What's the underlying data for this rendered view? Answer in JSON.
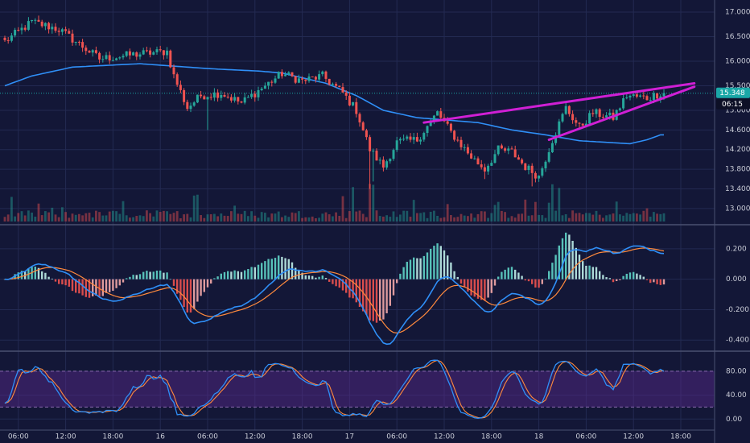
{
  "colors": {
    "background": "#131737",
    "grid": "#232a52",
    "separator": "#4a5070",
    "axis_text": "#c8cbd6",
    "up": "#26a69a",
    "down": "#ef5350",
    "ma_line": "#2f8ff7",
    "trendline": "#d01fd5",
    "price_label": "#1aa7a7",
    "macd_line": "#2f8ff7",
    "signal_line": "#ff8a3d",
    "stoch_k": "#2f8ff7",
    "stoch_d": "#ff8a3d",
    "stoch_band": "#5b2a8e"
  },
  "chart_data": [
    {
      "type": "candlestick",
      "x_ticks": [
        "06:00",
        "12:00",
        "18:00",
        "16",
        "06:00",
        "12:00",
        "18:00",
        "17",
        "06:00",
        "12:00",
        "18:00",
        "18",
        "06:00",
        "12:00",
        "18:00"
      ],
      "y_ticks": [
        "17.000",
        "16.500",
        "16.000",
        "15.500",
        "15.000",
        "14.600",
        "14.200",
        "13.800",
        "13.400",
        "13.000"
      ],
      "ylim": [
        12.85,
        17.05
      ],
      "price_label": "15.348",
      "countdown_label": "06:15",
      "last_price": 15.348,
      "keypoints": [
        [
          0,
          16.4
        ],
        [
          8,
          16.8
        ],
        [
          16,
          16.65
        ],
        [
          28,
          16.05
        ],
        [
          40,
          16.15
        ],
        [
          48,
          16.2
        ],
        [
          50,
          15.7
        ],
        [
          54,
          15.05
        ],
        [
          58,
          15.3
        ],
        [
          64,
          15.35
        ],
        [
          70,
          15.15
        ],
        [
          76,
          15.45
        ],
        [
          82,
          15.75
        ],
        [
          88,
          15.6
        ],
        [
          94,
          15.7
        ],
        [
          100,
          15.35
        ],
        [
          104,
          15.0
        ],
        [
          108,
          14.2
        ],
        [
          112,
          13.85
        ],
        [
          116,
          14.35
        ],
        [
          122,
          14.4
        ],
        [
          128,
          14.95
        ],
        [
          132,
          14.55
        ],
        [
          138,
          14.05
        ],
        [
          142,
          13.8
        ],
        [
          146,
          14.2
        ],
        [
          150,
          14.15
        ],
        [
          154,
          13.85
        ],
        [
          158,
          13.65
        ],
        [
          162,
          14.4
        ],
        [
          166,
          15.05
        ],
        [
          170,
          14.65
        ],
        [
          174,
          14.95
        ],
        [
          180,
          14.85
        ],
        [
          184,
          15.3
        ],
        [
          190,
          15.25
        ],
        [
          194,
          15.35
        ]
      ],
      "moving_average": [
        [
          0,
          15.5
        ],
        [
          8,
          15.7
        ],
        [
          20,
          15.88
        ],
        [
          40,
          15.95
        ],
        [
          60,
          15.85
        ],
        [
          75,
          15.8
        ],
        [
          82,
          15.76
        ],
        [
          95,
          15.55
        ],
        [
          104,
          15.3
        ],
        [
          112,
          15.0
        ],
        [
          122,
          14.85
        ],
        [
          140,
          14.75
        ],
        [
          150,
          14.6
        ],
        [
          160,
          14.5
        ],
        [
          170,
          14.38
        ],
        [
          185,
          14.32
        ],
        [
          190,
          14.4
        ],
        [
          194,
          14.5
        ]
      ],
      "trendlines": [
        {
          "from": [
            124,
            14.75
          ],
          "to": [
            204,
            15.55
          ]
        },
        {
          "from": [
            161,
            14.4
          ],
          "to": [
            204,
            15.48
          ]
        }
      ]
    },
    {
      "type": "macd",
      "y_ticks": [
        "0.200",
        "0.000",
        "-0.200",
        "-0.400"
      ],
      "ylim": [
        -0.42,
        0.3
      ]
    },
    {
      "type": "stochastic",
      "y_ticks": [
        "80.00",
        "40.00",
        "0.00"
      ],
      "ylim": [
        -5,
        100
      ],
      "band": [
        20,
        80
      ]
    }
  ]
}
